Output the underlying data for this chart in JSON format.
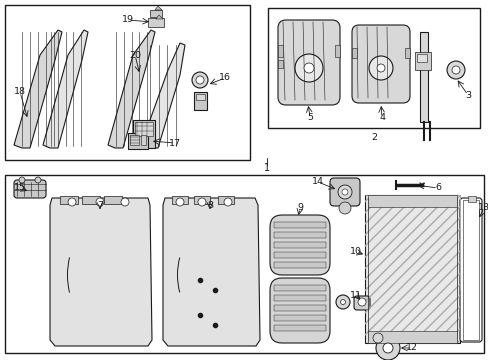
{
  "bg_color": "#ffffff",
  "line_color": "#1a1a1a",
  "gray_light": "#e0e0e0",
  "gray_mid": "#c8c8c8",
  "gray_dark": "#a0a0a0",
  "fig_width": 4.89,
  "fig_height": 3.6,
  "dpi": 100
}
